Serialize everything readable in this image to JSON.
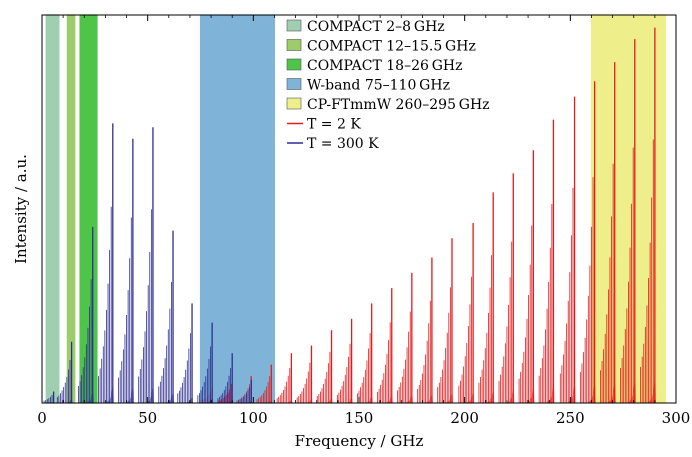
{
  "chart_data": {
    "type": "line",
    "title": "",
    "xlabel": "Frequency / GHz",
    "ylabel": "Intensity / a.u.",
    "xlim": [
      0,
      300
    ],
    "ylim": [
      0,
      1
    ],
    "xticks": [
      0,
      50,
      100,
      150,
      200,
      250,
      300
    ],
    "grid": false,
    "legend_position": "top-right",
    "bands": [
      {
        "name": "COMPACT 2–8 GHz",
        "x_start": 2,
        "x_end": 8,
        "color": "#9fcfb0"
      },
      {
        "name": "COMPACT 12–15.5 GHz",
        "x_start": 12,
        "x_end": 15.5,
        "color": "#9dcd6a"
      },
      {
        "name": "COMPACT 18–26 GHz",
        "x_start": 18,
        "x_end": 26,
        "color": "#4ec548"
      },
      {
        "name": "W-band 75–110 GHz",
        "x_start": 75,
        "x_end": 110,
        "color": "#7fb4d8"
      },
      {
        "name": "CP-FTmmW 260–295 GHz",
        "x_start": 260,
        "x_end": 295,
        "color": "#eeee8a"
      }
    ],
    "series": [
      {
        "name": "T = 2 K",
        "legend_label": "T = 2 K",
        "color": "#e41a1c",
        "peaks": [
          {
            "x": 80.5,
            "y": 0.04
          },
          {
            "x": 89.5,
            "y": 0.05
          },
          {
            "x": 99,
            "y": 0.07
          },
          {
            "x": 108.5,
            "y": 0.1
          },
          {
            "x": 118,
            "y": 0.13
          },
          {
            "x": 127.5,
            "y": 0.15
          },
          {
            "x": 137,
            "y": 0.19
          },
          {
            "x": 146.5,
            "y": 0.22
          },
          {
            "x": 156,
            "y": 0.26
          },
          {
            "x": 165.5,
            "y": 0.3
          },
          {
            "x": 175,
            "y": 0.34
          },
          {
            "x": 184.5,
            "y": 0.38
          },
          {
            "x": 194,
            "y": 0.43
          },
          {
            "x": 204,
            "y": 0.47
          },
          {
            "x": 213.5,
            "y": 0.55
          },
          {
            "x": 223,
            "y": 0.6
          },
          {
            "x": 232.5,
            "y": 0.66
          },
          {
            "x": 242,
            "y": 0.74
          },
          {
            "x": 252,
            "y": 0.8
          },
          {
            "x": 261.5,
            "y": 0.84
          },
          {
            "x": 271,
            "y": 0.89
          },
          {
            "x": 280.5,
            "y": 0.95
          },
          {
            "x": 290,
            "y": 0.98
          }
        ]
      },
      {
        "name": "T = 300 K",
        "legend_label": "T = 300 K",
        "color": "#2e2e8f",
        "peaks": [
          {
            "x": 5.5,
            "y": 0.03
          },
          {
            "x": 14,
            "y": 0.16
          },
          {
            "x": 24,
            "y": 0.46
          },
          {
            "x": 33.5,
            "y": 0.73
          },
          {
            "x": 43,
            "y": 0.69
          },
          {
            "x": 52.5,
            "y": 0.72
          },
          {
            "x": 62,
            "y": 0.45
          },
          {
            "x": 71,
            "y": 0.26
          },
          {
            "x": 80.5,
            "y": 0.21
          },
          {
            "x": 90,
            "y": 0.13
          },
          {
            "x": 99,
            "y": 0.06
          }
        ]
      }
    ]
  }
}
